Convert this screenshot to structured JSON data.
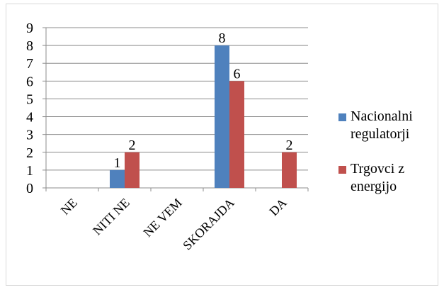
{
  "chart_data": {
    "type": "bar",
    "categories": [
      "NE",
      "NITI NE",
      "NE VEM",
      "SKORAJDA",
      "DA"
    ],
    "series": [
      {
        "name": "Nacionalni regulatorji",
        "values": [
          0,
          1,
          0,
          8,
          0
        ],
        "color": "#4f81bd"
      },
      {
        "name": "Trgovci z energijo",
        "values": [
          0,
          2,
          0,
          6,
          2
        ],
        "color": "#c0504d"
      }
    ],
    "data_labels": [
      [
        null,
        "1",
        null,
        "8",
        null
      ],
      [
        null,
        "2",
        null,
        "6",
        "2"
      ]
    ],
    "legend_lines": [
      [
        "Nacionalni",
        "regulatorji"
      ],
      [
        "Trgovci z",
        "energijo"
      ]
    ],
    "y_ticks": [
      "0",
      "1",
      "2",
      "3",
      "4",
      "5",
      "6",
      "7",
      "8",
      "9"
    ],
    "ylim": [
      0,
      9
    ],
    "grid": true,
    "legend_position": "right",
    "title": "",
    "xlabel": "",
    "ylabel": ""
  }
}
